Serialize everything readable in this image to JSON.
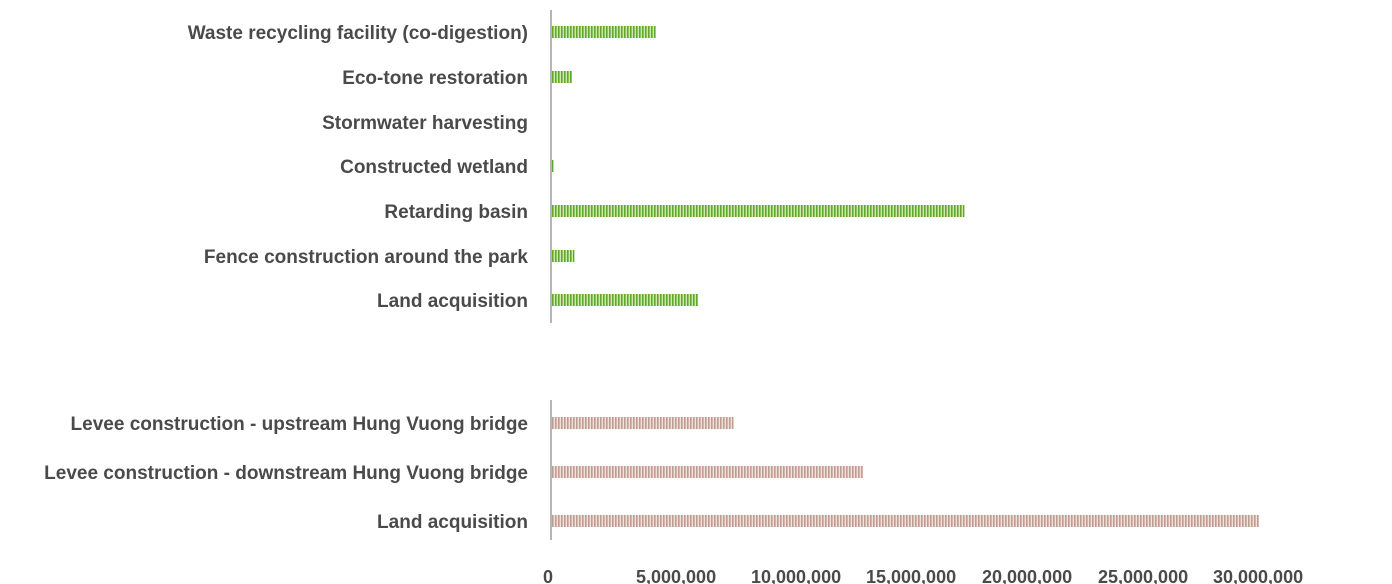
{
  "chart_data": [
    {
      "type": "bar",
      "orientation": "horizontal",
      "title": "",
      "xlabel": "",
      "ylabel": "",
      "categories": [
        "Waste recycling facility (co-digestion)",
        "Eco-tone restoration",
        "Stormwater harvesting",
        "Constructed wetland",
        "Retarding basin",
        "Fence construction around the park",
        "Land acquisition"
      ],
      "values": [
        4400000,
        850000,
        0,
        60000,
        17500000,
        950000,
        6200000
      ],
      "color": "#8dc63f",
      "xlim": [
        0,
        30000000
      ]
    },
    {
      "type": "bar",
      "orientation": "horizontal",
      "title": "",
      "xlabel": "",
      "ylabel": "",
      "categories": [
        "Levee construction - upstream Hung Vuong bridge",
        "Levee construction - downstream Hung Vuong bridge",
        "Land acquisition"
      ],
      "values": [
        7700000,
        13200000,
        30000000
      ],
      "color": "#d9b8b0",
      "xlim": [
        0,
        30000000
      ]
    }
  ],
  "axis": {
    "ticks": [
      "0",
      "5,000,000",
      "10,000,000",
      "15,000,000",
      "20,000,000",
      "25,000,000",
      "30,000,000"
    ]
  }
}
